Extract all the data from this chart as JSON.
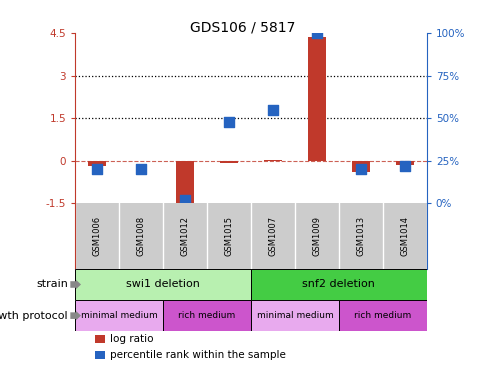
{
  "title": "GDS106 / 5817",
  "samples": [
    "GSM1006",
    "GSM1008",
    "GSM1012",
    "GSM1015",
    "GSM1007",
    "GSM1009",
    "GSM1013",
    "GSM1014"
  ],
  "log_ratio": [
    -0.18,
    0.0,
    -1.55,
    -0.08,
    0.02,
    4.35,
    -0.38,
    -0.15
  ],
  "percentile_pct": [
    20,
    20,
    2,
    48,
    55,
    100,
    20,
    22
  ],
  "ylim_left": [
    -1.5,
    4.5
  ],
  "ylim_right": [
    0,
    100
  ],
  "yticks_left": [
    -1.5,
    0,
    1.5,
    3,
    4.5
  ],
  "yticks_right": [
    0,
    25,
    50,
    75,
    100
  ],
  "hlines": [
    1.5,
    3.0
  ],
  "bar_color": "#c0392b",
  "dot_color": "#2563c0",
  "strain_groups": [
    {
      "label": "swi1 deletion",
      "start": 0,
      "end": 4,
      "color": "#b8f0b0"
    },
    {
      "label": "snf2 deletion",
      "start": 4,
      "end": 8,
      "color": "#44cc44"
    }
  ],
  "protocol_groups": [
    {
      "label": "minimal medium",
      "start": 0,
      "end": 2,
      "color": "#e8aaee"
    },
    {
      "label": "rich medium",
      "start": 2,
      "end": 4,
      "color": "#cc55cc"
    },
    {
      "label": "minimal medium",
      "start": 4,
      "end": 6,
      "color": "#e8aaee"
    },
    {
      "label": "rich medium",
      "start": 6,
      "end": 8,
      "color": "#cc55cc"
    }
  ],
  "legend_items": [
    {
      "label": "log ratio",
      "color": "#c0392b"
    },
    {
      "label": "percentile rank within the sample",
      "color": "#2563c0"
    }
  ],
  "strain_label": "strain",
  "protocol_label": "growth protocol",
  "bar_width": 0.4,
  "dot_size": 55,
  "sample_bg": "#cccccc"
}
